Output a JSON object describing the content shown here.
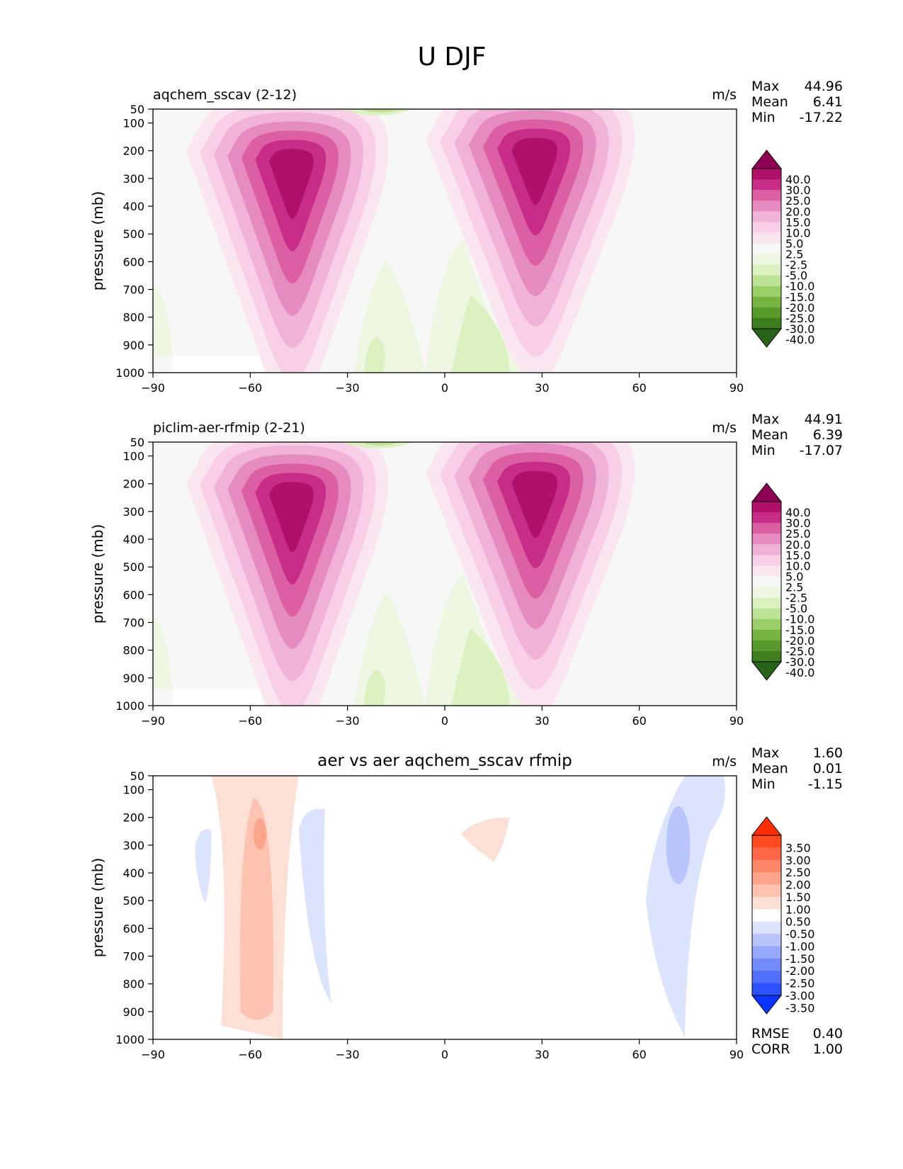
{
  "figure": {
    "title": "U DJF"
  },
  "chart_data": [
    {
      "type": "contour",
      "title": "aqchem_sscav (2-12)",
      "units": "m/s",
      "xlabel": "",
      "ylabel": "pressure (mb)",
      "x_ticks": [
        "−90",
        "−60",
        "−30",
        "0",
        "30",
        "60",
        "90"
      ],
      "y_ticks": [
        "50",
        "100",
        "200",
        "300",
        "400",
        "500",
        "600",
        "700",
        "800",
        "900",
        "1000"
      ],
      "xlim": [
        -90,
        90
      ],
      "ylim": [
        1000,
        50
      ],
      "stats": [
        {
          "label": "Max",
          "value": "44.96"
        },
        {
          "label": "Mean",
          "value": "6.41"
        },
        {
          "label": "Min",
          "value": "-17.22"
        }
      ],
      "colorbar_levels": [
        "40.0",
        "30.0",
        "25.0",
        "20.0",
        "15.0",
        "10.0",
        "5.0",
        "2.5",
        "-2.5",
        "-5.0",
        "-10.0",
        "-15.0",
        "-20.0",
        "-25.0",
        "-30.0",
        "-40.0"
      ],
      "colorbar_colors": [
        "#8e0152",
        "#b01068",
        "#c72c86",
        "#dc5fa3",
        "#e68bbf",
        "#f0b2d6",
        "#f8cfe6",
        "#fae6f1",
        "#f7f7f6",
        "#eef7e1",
        "#dbf1bf",
        "#bde397",
        "#9bcf68",
        "#77b540",
        "#589b2c",
        "#3e7e1f",
        "#276419"
      ],
      "jets": [
        {
          "lat": -47,
          "p": 250,
          "max": 35
        },
        {
          "lat": 28,
          "p": 210,
          "max": 45
        }
      ]
    },
    {
      "type": "contour",
      "title": "piclim-aer-rfmip (2-21)",
      "units": "m/s",
      "xlabel": "",
      "ylabel": "pressure (mb)",
      "x_ticks": [
        "−90",
        "−60",
        "−30",
        "0",
        "30",
        "60",
        "90"
      ],
      "y_ticks": [
        "50",
        "100",
        "200",
        "300",
        "400",
        "500",
        "600",
        "700",
        "800",
        "900",
        "1000"
      ],
      "xlim": [
        -90,
        90
      ],
      "ylim": [
        1000,
        50
      ],
      "stats": [
        {
          "label": "Max",
          "value": "44.91"
        },
        {
          "label": "Mean",
          "value": "6.39"
        },
        {
          "label": "Min",
          "value": "-17.07"
        }
      ],
      "colorbar_levels": [
        "40.0",
        "30.0",
        "25.0",
        "20.0",
        "15.0",
        "10.0",
        "5.0",
        "2.5",
        "-2.5",
        "-5.0",
        "-10.0",
        "-15.0",
        "-20.0",
        "-25.0",
        "-30.0",
        "-40.0"
      ],
      "colorbar_colors": [
        "#8e0152",
        "#b01068",
        "#c72c86",
        "#dc5fa3",
        "#e68bbf",
        "#f0b2d6",
        "#f8cfe6",
        "#fae6f1",
        "#f7f7f6",
        "#eef7e1",
        "#dbf1bf",
        "#bde397",
        "#9bcf68",
        "#77b540",
        "#589b2c",
        "#3e7e1f",
        "#276419"
      ],
      "jets": [
        {
          "lat": -47,
          "p": 250,
          "max": 35
        },
        {
          "lat": 28,
          "p": 210,
          "max": 45
        }
      ]
    },
    {
      "type": "contour",
      "title": "aer vs aer aqchem_sscav rfmip",
      "units": "m/s",
      "xlabel": "",
      "ylabel": "pressure (mb)",
      "x_ticks": [
        "−90",
        "−60",
        "−30",
        "0",
        "30",
        "60",
        "90"
      ],
      "y_ticks": [
        "50",
        "100",
        "200",
        "300",
        "400",
        "500",
        "600",
        "700",
        "800",
        "900",
        "1000"
      ],
      "xlim": [
        -90,
        90
      ],
      "ylim": [
        1000,
        50
      ],
      "stats": [
        {
          "label": "Max",
          "value": "1.60"
        },
        {
          "label": "Mean",
          "value": "0.01"
        },
        {
          "label": "Min",
          "value": "-1.15"
        }
      ],
      "extra_stats": [
        {
          "label": "RMSE",
          "value": "0.40"
        },
        {
          "label": "CORR",
          "value": "1.00"
        }
      ],
      "colorbar_levels": [
        "3.50",
        "3.00",
        "2.50",
        "2.00",
        "1.50",
        "1.00",
        "0.50",
        "-0.50",
        "-1.00",
        "-1.50",
        "-2.00",
        "-2.50",
        "-3.00",
        "-3.50"
      ],
      "colorbar_colors": [
        "#ff2d00",
        "#ff4a1f",
        "#fe6745",
        "#fe8768",
        "#fea58c",
        "#fec3b0",
        "#fde0d5",
        "#ffffff",
        "#dce3fd",
        "#b9c6fd",
        "#96a9fd",
        "#738cfd",
        "#506ffd",
        "#2d52fd",
        "#0a35fd"
      ]
    }
  ]
}
